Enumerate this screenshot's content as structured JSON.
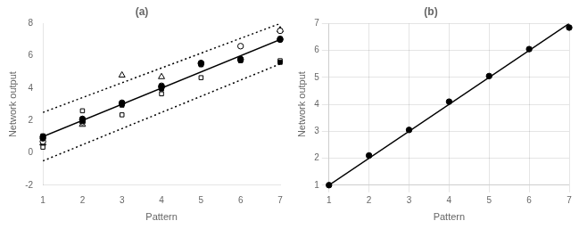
{
  "chart_data": [
    {
      "type": "scatter",
      "title": "(a)",
      "xlabel": "Pattern",
      "ylabel": "Network output",
      "xlim": [
        1,
        7
      ],
      "ylim": [
        -2,
        8
      ],
      "xticks": [
        1,
        2,
        3,
        4,
        5,
        6,
        7
      ],
      "yticks": [
        -2,
        0,
        2,
        4,
        6,
        8
      ],
      "grid": false,
      "series": [
        {
          "type": "line",
          "line_style": "solid",
          "color": "#000000",
          "x": [
            1,
            7
          ],
          "values": [
            1,
            7
          ]
        },
        {
          "type": "line",
          "line_style": "dotted",
          "color": "#000000",
          "x": [
            1,
            7
          ],
          "values": [
            2.5,
            8.0
          ]
        },
        {
          "type": "line",
          "line_style": "dotted",
          "color": "#000000",
          "x": [
            1,
            7
          ],
          "values": [
            -0.5,
            5.5
          ]
        },
        {
          "type": "scatter",
          "marker": "circle",
          "color": "#000000",
          "x": [
            1,
            2,
            3,
            4,
            5,
            6,
            7
          ],
          "values": [
            1.0,
            2.05,
            3.05,
            4.1,
            5.55,
            5.75,
            7.0
          ]
        },
        {
          "type": "scatter",
          "marker": "open_circle",
          "color": "#000000",
          "x": [
            1,
            2,
            3,
            4,
            5,
            6,
            7
          ],
          "values": [
            0.7,
            1.9,
            3.1,
            4.15,
            5.5,
            6.6,
            7.55
          ]
        },
        {
          "type": "scatter",
          "marker": "square",
          "color": "#000000",
          "x": [
            1,
            2,
            3,
            4,
            5,
            6,
            7
          ],
          "values": [
            1.05,
            1.95,
            2.95,
            3.95,
            5.45,
            5.7,
            5.6
          ]
        },
        {
          "type": "scatter",
          "marker": "open_square",
          "color": "#000000",
          "x": [
            1,
            2,
            3,
            4,
            5,
            6,
            7
          ],
          "values": [
            0.35,
            2.6,
            2.35,
            3.65,
            4.65,
            5.75,
            5.7
          ]
        },
        {
          "type": "scatter",
          "marker": "open_triangle",
          "color": "#000000",
          "x": [
            1,
            2,
            3,
            4,
            7
          ],
          "values": [
            0.6,
            1.75,
            4.8,
            4.7,
            7.6
          ]
        },
        {
          "type": "scatter",
          "marker": "circle",
          "color": "#000000",
          "x": [
            1,
            2,
            3,
            4,
            5,
            6,
            7
          ],
          "values": [
            0.9,
            2.1,
            3.05,
            4.05,
            5.55,
            5.8,
            7.05
          ]
        }
      ]
    },
    {
      "type": "scatter",
      "title": "(b)",
      "xlabel": "Pattern",
      "ylabel": "Network output",
      "xlim": [
        1,
        7
      ],
      "ylim": [
        1,
        7
      ],
      "xticks": [
        1,
        2,
        3,
        4,
        5,
        6,
        7
      ],
      "yticks": [
        1,
        2,
        3,
        4,
        5,
        6,
        7
      ],
      "grid": true,
      "series": [
        {
          "type": "line",
          "line_style": "solid",
          "color": "#000000",
          "x": [
            1,
            7
          ],
          "values": [
            1,
            7
          ]
        },
        {
          "type": "scatter",
          "marker": "circle",
          "color": "#000000",
          "x": [
            1,
            2,
            3,
            4,
            5,
            6,
            7
          ],
          "values": [
            1.0,
            2.1,
            3.05,
            4.1,
            5.05,
            6.05,
            6.85
          ]
        }
      ]
    }
  ]
}
